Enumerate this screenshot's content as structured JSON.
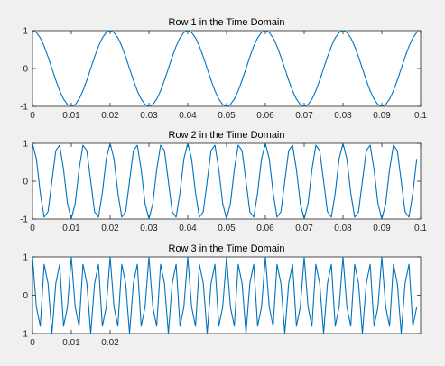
{
  "chart_data": [
    {
      "type": "line",
      "title": "Row 1 in the Time Domain",
      "xlabel": "",
      "ylabel": "",
      "xlim": [
        0,
        0.1
      ],
      "ylim": [
        -1,
        1
      ],
      "x_ticks": [
        "0",
        "0.01",
        "0.02",
        "0.03",
        "0.04",
        "0.05",
        "0.06",
        "0.07",
        "0.08",
        "0.09",
        "0.1"
      ],
      "y_ticks": [
        "-1",
        "0",
        "1"
      ],
      "grid": false,
      "series": [
        {
          "function": "cos(2*pi*f*t)",
          "frequency_hz": 50,
          "sample_rate_hz": 1000,
          "t_start": 0,
          "t_end": 0.099,
          "color": "#0072bd"
        }
      ]
    },
    {
      "type": "line",
      "title": "Row 2 in the Time Domain",
      "xlabel": "",
      "ylabel": "",
      "xlim": [
        0,
        0.1
      ],
      "ylim": [
        -1,
        1
      ],
      "x_ticks": [
        "0",
        "0.01",
        "0.02",
        "0.03",
        "0.04",
        "0.05",
        "0.06",
        "0.07",
        "0.08",
        "0.09",
        "0.1"
      ],
      "y_ticks": [
        "-1",
        "0",
        "1"
      ],
      "grid": false,
      "series": [
        {
          "function": "cos(2*pi*f*t)",
          "frequency_hz": 150,
          "sample_rate_hz": 1000,
          "t_start": 0,
          "t_end": 0.099,
          "color": "#0072bd"
        }
      ]
    },
    {
      "type": "line",
      "title": "Row 3 in the Time Domain",
      "xlabel": "",
      "ylabel": "",
      "xlim": [
        0,
        0.1
      ],
      "ylim": [
        -1,
        1
      ],
      "x_ticks": [
        "0",
        "0.01",
        "0.02"
      ],
      "y_ticks": [
        "-1",
        "0",
        "1"
      ],
      "grid": false,
      "series": [
        {
          "function": "cos(2*pi*f*t)",
          "frequency_hz": 300,
          "sample_rate_hz": 1000,
          "t_start": 0,
          "t_end": 0.099,
          "color": "#0072bd"
        }
      ]
    }
  ]
}
